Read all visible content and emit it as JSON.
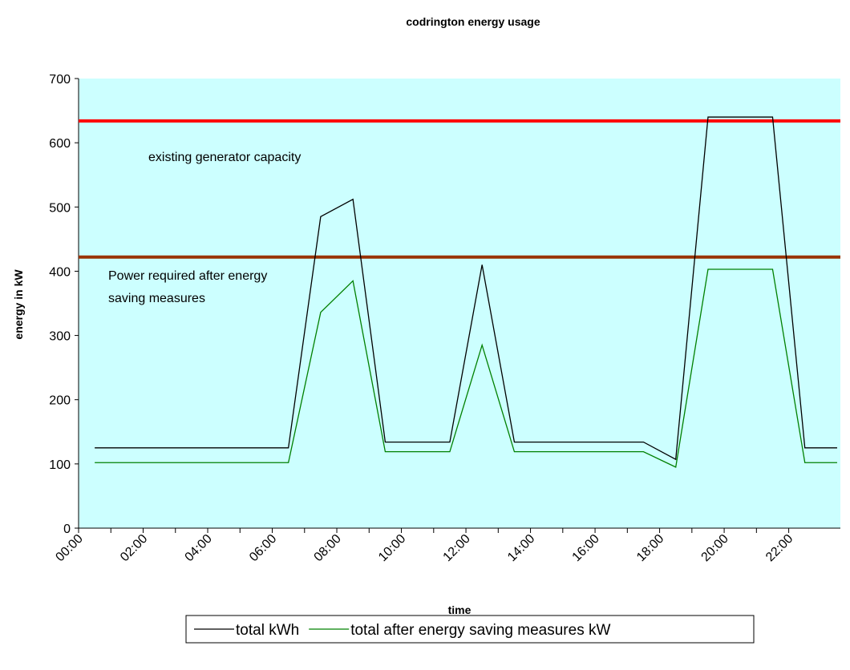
{
  "chart_data": {
    "type": "line",
    "title": "codrington energy usage",
    "x_label": "time",
    "y_label": "energy in kW",
    "x": [
      0.5,
      1.5,
      2.5,
      3.5,
      4.5,
      5.5,
      6.5,
      7.5,
      8.5,
      9.5,
      10.5,
      11.5,
      12.5,
      13.5,
      14.5,
      15.5,
      16.5,
      17.5,
      18.5,
      19.5,
      20.5,
      21.5,
      22.5,
      23.5
    ],
    "series": [
      {
        "name": "total kWh",
        "color": "#000000",
        "values": [
          125,
          125,
          125,
          125,
          125,
          125,
          125,
          485,
          512,
          134,
          134,
          134,
          410,
          134,
          134,
          134,
          134,
          134,
          107,
          640,
          640,
          640,
          125,
          125
        ]
      },
      {
        "name": "total after energy saving measures kW",
        "color": "#008000",
        "values": [
          102,
          102,
          102,
          102,
          102,
          102,
          102,
          336,
          385,
          119,
          119,
          119,
          285,
          119,
          119,
          119,
          119,
          119,
          95,
          403,
          403,
          403,
          102,
          102
        ]
      }
    ],
    "reference_lines": [
      {
        "value": 634,
        "color": "#ff0000",
        "label": [
          "existing  generator capacity"
        ]
      },
      {
        "value": 422,
        "color": "#993300",
        "label": [
          "Power required after energy",
          "saving measures"
        ]
      }
    ],
    "xlim": [
      0,
      23.6
    ],
    "xticks": [
      {
        "value": 0,
        "label": "00:00"
      },
      {
        "value": 2,
        "label": "02:00"
      },
      {
        "value": 4,
        "label": "04:00"
      },
      {
        "value": 6,
        "label": "06:00"
      },
      {
        "value": 8,
        "label": "08:00"
      },
      {
        "value": 10,
        "label": "10:00"
      },
      {
        "value": 12,
        "label": "12:00"
      },
      {
        "value": 14,
        "label": "14:00"
      },
      {
        "value": 16,
        "label": "16:00"
      },
      {
        "value": 18,
        "label": "18:00"
      },
      {
        "value": 20,
        "label": "20:00"
      },
      {
        "value": 22,
        "label": "22:00"
      }
    ],
    "ylim": [
      0,
      700
    ],
    "yticks": [
      0,
      100,
      200,
      300,
      400,
      500,
      600,
      700
    ],
    "background": "#ccffff",
    "legend": "bottom"
  }
}
